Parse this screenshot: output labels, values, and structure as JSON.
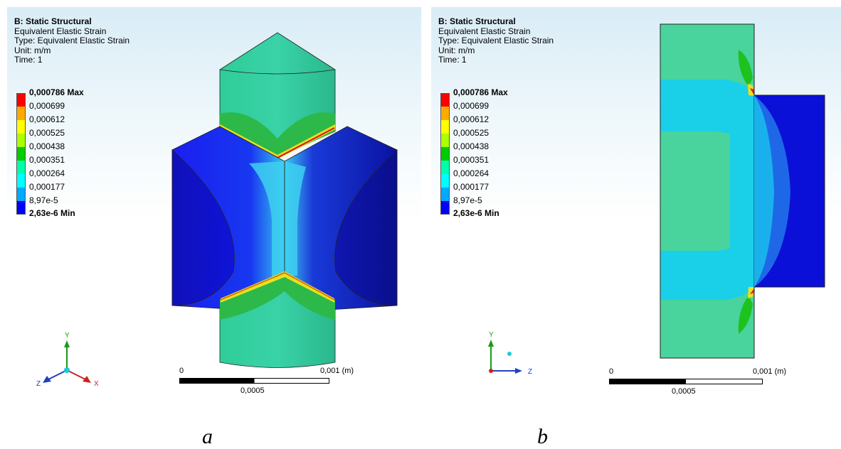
{
  "views": [
    {
      "caption": "a",
      "title": "B: Static Structural",
      "result_name": "Equivalent Elastic Strain",
      "type_line": "Type: Equivalent Elastic Strain",
      "unit_line": "Unit: m/m",
      "time_line": "Time: 1",
      "scale": {
        "zero": "0",
        "end": "0,001 (m)",
        "mid": "0,0005"
      },
      "triad": {
        "y": "Y",
        "z": "Z",
        "x": "X"
      }
    },
    {
      "caption": "b",
      "title": "B: Static Structural",
      "result_name": "Equivalent Elastic Strain",
      "type_line": "Type: Equivalent Elastic Strain",
      "unit_line": "Unit: m/m",
      "time_line": "Time: 1",
      "scale": {
        "zero": "0",
        "end": "0,001 (m)",
        "mid": "0,0005"
      },
      "triad": {
        "y": "Y",
        "z": "Z"
      }
    }
  ],
  "legend": {
    "labels": [
      "0,000786 Max",
      "0,000699",
      "0,000612",
      "0,000525",
      "0,000438",
      "0,000351",
      "0,000264",
      "0,000177",
      "8,97e-5",
      "2,63e-6 Min"
    ],
    "colors": [
      "#ff0000",
      "#ffaa00",
      "#ffff00",
      "#aaff00",
      "#00cc00",
      "#00ffaa",
      "#00ffff",
      "#00aaff",
      "#0055ff",
      "#0000ff"
    ]
  }
}
